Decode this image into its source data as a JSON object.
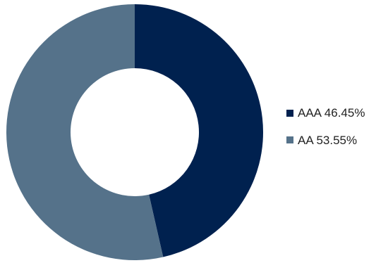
{
  "chart_data": {
    "type": "pie",
    "donut": true,
    "categories": [
      "AAA",
      "AA"
    ],
    "values": [
      46.45,
      53.55
    ],
    "unit": "%",
    "colors": [
      "#00214F",
      "#55728A"
    ],
    "legend_labels": [
      "AAA 46.45%",
      "AA 53.55%"
    ],
    "legend": "right",
    "start_angle_deg": 0,
    "direction": "clockwise"
  }
}
